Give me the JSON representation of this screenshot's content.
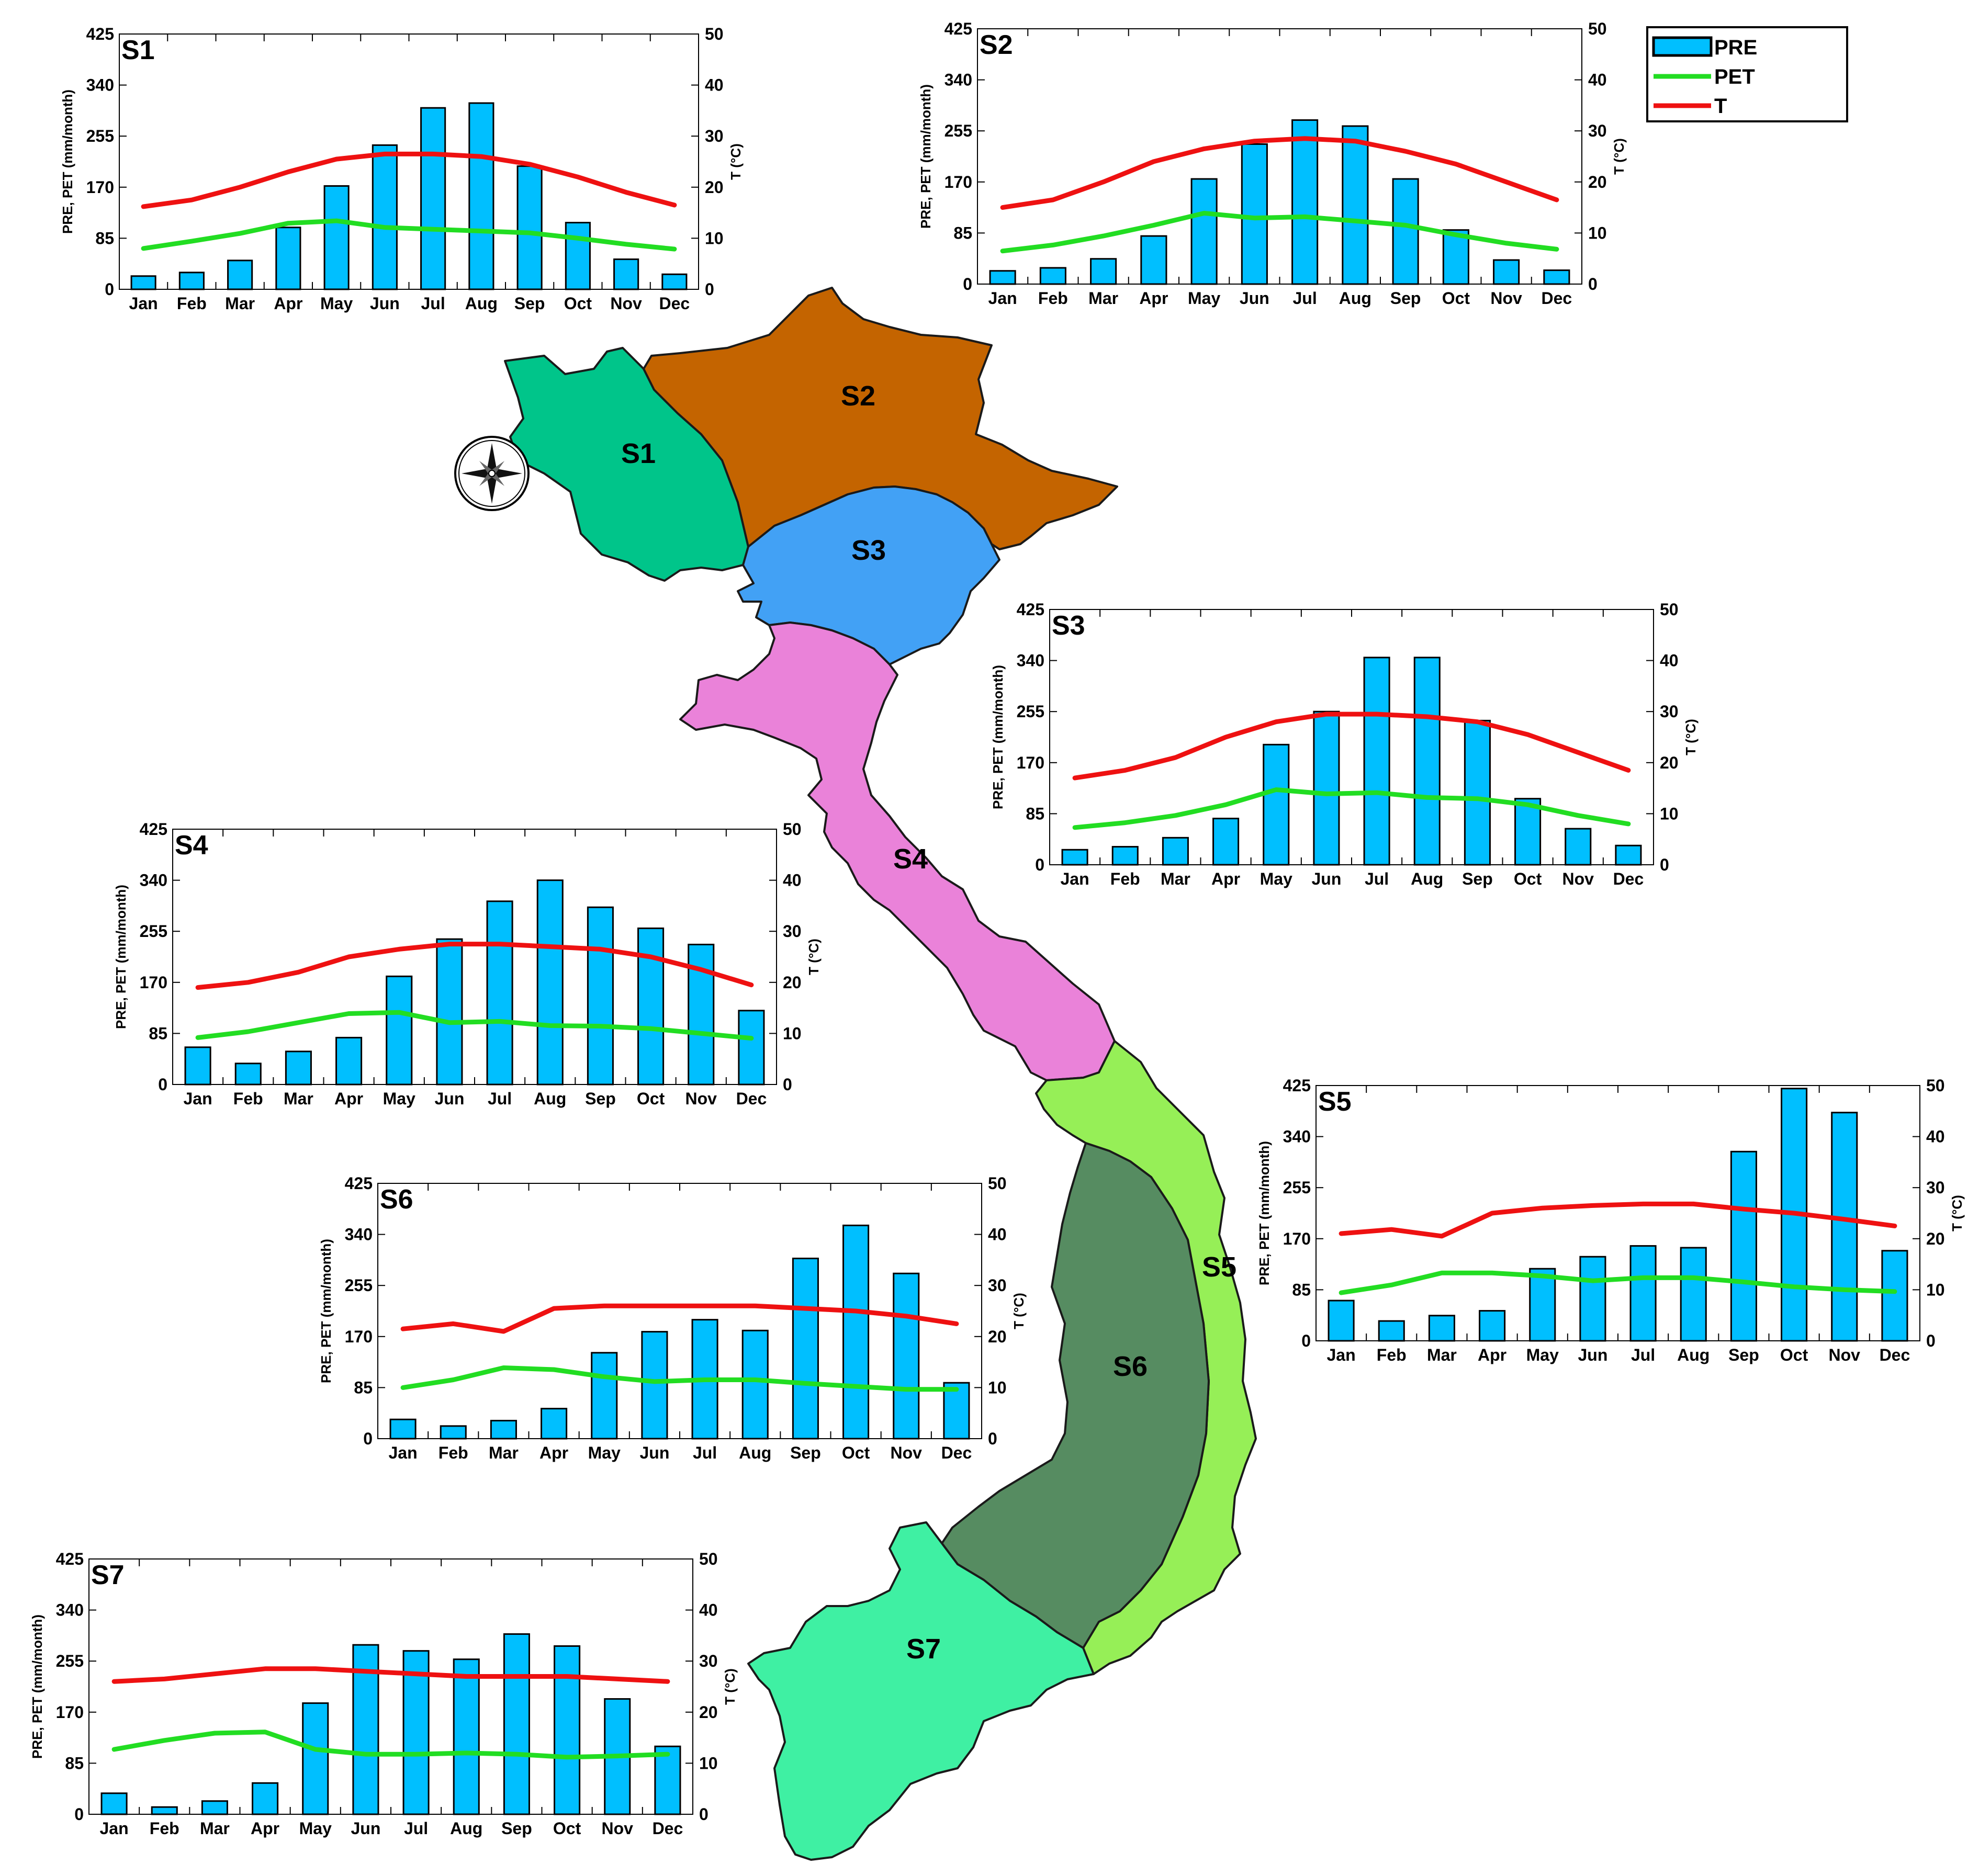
{
  "legend": {
    "items": [
      {
        "key": "pre",
        "label": "PRE",
        "color": "#00bfff",
        "kind": "bar"
      },
      {
        "key": "pet",
        "label": "PET",
        "color": "#22dd22",
        "kind": "line"
      },
      {
        "key": "t",
        "label": "T",
        "color": "#ee1111",
        "kind": "line"
      }
    ]
  },
  "axes": {
    "left_title": "PRE, PET  (mm/month)",
    "right_title": "T (°C)",
    "left_ticks": [
      0,
      85,
      170,
      255,
      340,
      425
    ],
    "right_ticks": [
      0,
      10,
      20,
      30,
      40,
      50
    ],
    "left_ylim": [
      0,
      425
    ],
    "right_ylim": [
      0,
      50
    ]
  },
  "map": {
    "regions": [
      {
        "id": "S1",
        "label": "S1",
        "color": "#00c58a"
      },
      {
        "id": "S2",
        "label": "S2",
        "color": "#c46400"
      },
      {
        "id": "S3",
        "label": "S3",
        "color": "#42a1f5"
      },
      {
        "id": "S4",
        "label": "S4",
        "color": "#ea82d9"
      },
      {
        "id": "S5",
        "label": "S5",
        "color": "#96ef57"
      },
      {
        "id": "S6",
        "label": "S6",
        "color": "#568c61"
      },
      {
        "id": "S7",
        "label": "S7",
        "color": "#3ff0a3"
      }
    ]
  },
  "chart_data": [
    {
      "type": "bar",
      "title": "S1",
      "categories": [
        "Jan",
        "Feb",
        "Mar",
        "Apr",
        "May",
        "Jun",
        "Jul",
        "Aug",
        "Sep",
        "Oct",
        "Nov",
        "Dec"
      ],
      "series": [
        {
          "name": "PRE",
          "axis": "left",
          "values": [
            22,
            28,
            48,
            103,
            172,
            240,
            302,
            310,
            205,
            111,
            50,
            25
          ]
        },
        {
          "name": "PET",
          "axis": "left",
          "values": [
            68,
            80,
            93,
            110,
            114,
            103,
            100,
            97,
            94,
            85,
            75,
            67
          ]
        },
        {
          "name": "T",
          "axis": "right",
          "values": [
            16.2,
            17.5,
            20.0,
            23.0,
            25.5,
            26.5,
            26.5,
            26.0,
            24.5,
            22.0,
            19.0,
            16.5
          ]
        }
      ],
      "ylim_left": [
        0,
        425
      ],
      "ylim_right": [
        0,
        50
      ]
    },
    {
      "type": "bar",
      "title": "S2",
      "categories": [
        "Jan",
        "Feb",
        "Mar",
        "Apr",
        "May",
        "Jun",
        "Jul",
        "Aug",
        "Sep",
        "Oct",
        "Nov",
        "Dec"
      ],
      "series": [
        {
          "name": "PRE",
          "axis": "left",
          "values": [
            22,
            27,
            42,
            80,
            175,
            233,
            273,
            263,
            175,
            90,
            40,
            23
          ]
        },
        {
          "name": "PET",
          "axis": "left",
          "values": [
            55,
            65,
            80,
            98,
            118,
            110,
            112,
            105,
            98,
            82,
            68,
            58
          ]
        },
        {
          "name": "T",
          "axis": "right",
          "values": [
            15.0,
            16.5,
            20.0,
            24.0,
            26.5,
            28.0,
            28.5,
            28.0,
            26.0,
            23.5,
            20.0,
            16.5
          ]
        }
      ],
      "ylim_left": [
        0,
        425
      ],
      "ylim_right": [
        0,
        50
      ]
    },
    {
      "type": "bar",
      "title": "S3",
      "categories": [
        "Jan",
        "Feb",
        "Mar",
        "Apr",
        "May",
        "Jun",
        "Jul",
        "Aug",
        "Sep",
        "Oct",
        "Nov",
        "Dec"
      ],
      "series": [
        {
          "name": "PRE",
          "axis": "left",
          "values": [
            25,
            30,
            45,
            77,
            200,
            255,
            345,
            345,
            240,
            110,
            60,
            32
          ]
        },
        {
          "name": "PET",
          "axis": "left",
          "values": [
            62,
            70,
            82,
            100,
            125,
            118,
            120,
            112,
            110,
            100,
            82,
            68
          ]
        },
        {
          "name": "T",
          "axis": "right",
          "values": [
            17.0,
            18.5,
            21.0,
            25.0,
            28.0,
            29.5,
            29.5,
            29.0,
            28.0,
            25.5,
            22.0,
            18.5
          ]
        }
      ],
      "ylim_left": [
        0,
        425
      ],
      "ylim_right": [
        0,
        50
      ]
    },
    {
      "type": "bar",
      "title": "S4",
      "categories": [
        "Jan",
        "Feb",
        "Mar",
        "Apr",
        "May",
        "Jun",
        "Jul",
        "Aug",
        "Sep",
        "Oct",
        "Nov",
        "Dec"
      ],
      "series": [
        {
          "name": "PRE",
          "axis": "left",
          "values": [
            62,
            35,
            55,
            78,
            180,
            242,
            305,
            340,
            295,
            260,
            233,
            123
          ]
        },
        {
          "name": "PET",
          "axis": "left",
          "values": [
            78,
            88,
            103,
            118,
            120,
            103,
            105,
            98,
            97,
            93,
            85,
            77
          ]
        },
        {
          "name": "T",
          "axis": "right",
          "values": [
            19.0,
            20.0,
            22.0,
            25.0,
            26.5,
            27.5,
            27.5,
            27.0,
            26.5,
            25.0,
            22.5,
            19.5
          ]
        }
      ],
      "ylim_left": [
        0,
        425
      ],
      "ylim_right": [
        0,
        50
      ]
    },
    {
      "type": "bar",
      "title": "S5",
      "categories": [
        "Jan",
        "Feb",
        "Mar",
        "Apr",
        "May",
        "Jun",
        "Jul",
        "Aug",
        "Sep",
        "Oct",
        "Nov",
        "Dec"
      ],
      "series": [
        {
          "name": "PRE",
          "axis": "left",
          "values": [
            67,
            33,
            42,
            50,
            120,
            140,
            158,
            155,
            315,
            420,
            380,
            150
          ]
        },
        {
          "name": "PET",
          "axis": "left",
          "values": [
            80,
            93,
            113,
            113,
            108,
            100,
            105,
            105,
            98,
            90,
            85,
            82
          ]
        },
        {
          "name": "T",
          "axis": "right",
          "values": [
            21.0,
            21.8,
            20.5,
            25.0,
            26.0,
            26.5,
            26.8,
            26.8,
            25.8,
            25.0,
            23.8,
            22.5
          ]
        }
      ],
      "ylim_left": [
        0,
        425
      ],
      "ylim_right": [
        0,
        50
      ]
    },
    {
      "type": "bar",
      "title": "S6",
      "categories": [
        "Jan",
        "Feb",
        "Mar",
        "Apr",
        "May",
        "Jun",
        "Jul",
        "Aug",
        "Sep",
        "Oct",
        "Nov",
        "Dec"
      ],
      "series": [
        {
          "name": "PRE",
          "axis": "left",
          "values": [
            32,
            21,
            30,
            50,
            143,
            178,
            198,
            180,
            300,
            355,
            275,
            93
          ]
        },
        {
          "name": "PET",
          "axis": "left",
          "values": [
            85,
            98,
            118,
            115,
            103,
            95,
            98,
            98,
            92,
            87,
            82,
            82
          ]
        },
        {
          "name": "T",
          "axis": "right",
          "values": [
            21.5,
            22.5,
            21.0,
            25.5,
            26.0,
            26.0,
            26.0,
            26.0,
            25.5,
            25.0,
            24.0,
            22.5
          ]
        }
      ],
      "ylim_left": [
        0,
        425
      ],
      "ylim_right": [
        0,
        50
      ]
    },
    {
      "type": "bar",
      "title": "S7",
      "categories": [
        "Jan",
        "Feb",
        "Mar",
        "Apr",
        "May",
        "Jun",
        "Jul",
        "Aug",
        "Sep",
        "Oct",
        "Nov",
        "Dec"
      ],
      "series": [
        {
          "name": "PRE",
          "axis": "left",
          "values": [
            35,
            12,
            22,
            52,
            185,
            282,
            272,
            258,
            300,
            280,
            192,
            113
          ]
        },
        {
          "name": "PET",
          "axis": "left",
          "values": [
            108,
            123,
            135,
            137,
            108,
            100,
            100,
            102,
            100,
            95,
            97,
            100
          ]
        },
        {
          "name": "T",
          "axis": "right",
          "values": [
            26.0,
            26.5,
            27.5,
            28.5,
            28.5,
            28.0,
            27.5,
            27.0,
            27.0,
            27.0,
            26.5,
            26.0
          ]
        }
      ],
      "ylim_left": [
        0,
        425
      ],
      "ylim_right": [
        0,
        50
      ]
    }
  ]
}
